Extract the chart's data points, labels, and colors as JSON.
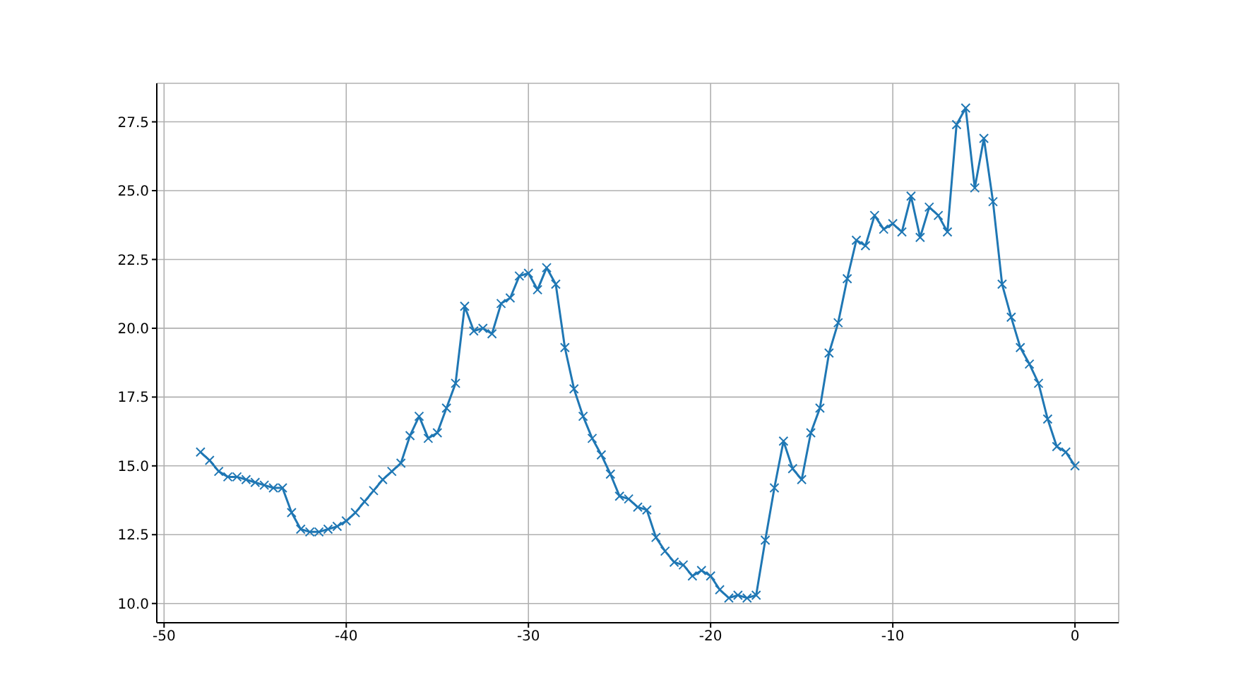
{
  "chart_data": {
    "type": "line",
    "marker": "cross",
    "line_style": "solid",
    "grid": true,
    "x": [
      -48,
      -47.5,
      -47,
      -46.5,
      -46,
      -45.5,
      -45,
      -44.5,
      -44,
      -43.5,
      -43,
      -42.5,
      -42,
      -41.5,
      -41,
      -40.5,
      -40,
      -39.5,
      -39,
      -38.5,
      -38,
      -37.5,
      -37,
      -36.5,
      -36,
      -35.5,
      -35,
      -34.5,
      -34,
      -33.5,
      -33,
      -32.5,
      -32,
      -31.5,
      -31,
      -30.5,
      -30,
      -29.5,
      -29,
      -28.5,
      -28,
      -27.5,
      -27,
      -26.5,
      -26,
      -25.5,
      -25,
      -24.5,
      -24,
      -23.5,
      -23,
      -22.5,
      -22,
      -21.5,
      -21,
      -20.5,
      -20,
      -19.5,
      -19,
      -18.5,
      -18,
      -17.5,
      -17,
      -16.5,
      -16,
      -15.5,
      -15,
      -14.5,
      -14,
      -13.5,
      -13,
      -12.5,
      -12,
      -11.5,
      -11,
      -10.5,
      -10,
      -9.5,
      -9,
      -8.5,
      -8,
      -7.5,
      -7,
      -6.5,
      -6,
      -5.5,
      -5,
      -4.5,
      -4,
      -3.5,
      -3,
      -2.5,
      -2,
      -1.5,
      -1,
      -0.5,
      0
    ],
    "series": [
      {
        "color": "#1f77b4",
        "values": [
          15.5,
          15.2,
          14.8,
          14.6,
          14.6,
          14.5,
          14.4,
          14.3,
          14.2,
          14.2,
          13.3,
          12.7,
          12.6,
          12.6,
          12.7,
          12.8,
          13.0,
          13.3,
          13.7,
          14.1,
          14.5,
          14.8,
          15.1,
          16.1,
          16.8,
          16.0,
          16.2,
          17.1,
          18.0,
          20.8,
          19.9,
          20.0,
          19.8,
          20.9,
          21.1,
          21.9,
          22.0,
          21.4,
          22.2,
          21.6,
          19.3,
          17.8,
          16.8,
          16.0,
          15.4,
          14.7,
          13.9,
          13.8,
          13.5,
          13.4,
          12.4,
          11.9,
          11.5,
          11.4,
          11.0,
          11.2,
          11.0,
          10.5,
          10.2,
          10.3,
          10.2,
          10.3,
          12.3,
          14.2,
          15.9,
          14.9,
          14.5,
          16.2,
          17.1,
          19.1,
          20.2,
          21.8,
          23.2,
          23.0,
          24.1,
          23.6,
          23.8,
          23.5,
          24.8,
          23.3,
          24.4,
          24.1,
          23.5,
          27.4,
          28.0,
          25.1,
          26.9,
          24.6,
          21.6,
          20.4,
          19.3,
          18.7,
          18.0,
          16.7,
          15.7,
          15.5,
          15.0
        ]
      }
    ],
    "xlim": [
      -50.4,
      2.4
    ],
    "xticks": [
      -50,
      -40,
      -30,
      -20,
      -10,
      0
    ],
    "ylim": [
      9.3,
      28.9
    ],
    "yticks": [
      {
        "value": 10,
        "label": "10.0"
      },
      12.5,
      {
        "value": 15,
        "label": "15.0"
      },
      17.5,
      {
        "value": 20,
        "label": "20.0"
      },
      22.5,
      {
        "value": 25,
        "label": "25.0"
      },
      27.5
    ]
  }
}
